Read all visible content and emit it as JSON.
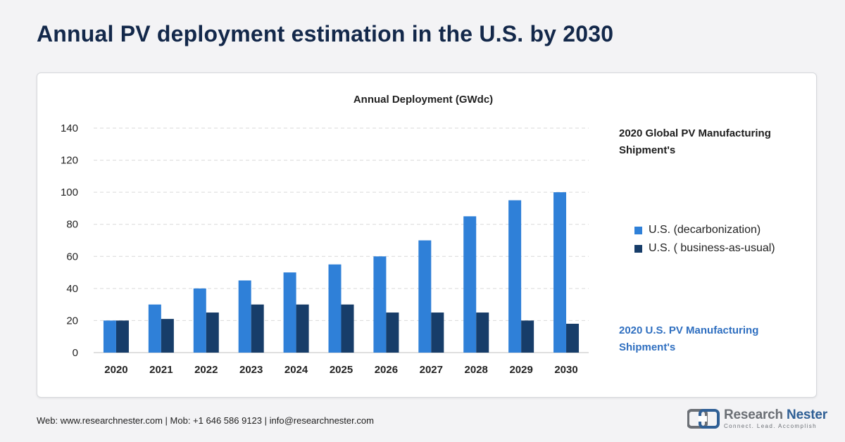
{
  "page": {
    "title": "Annual PV deployment estimation in the U.S. by 2030"
  },
  "side_labels": {
    "top": "2020 Global PV Manufacturing Shipment's",
    "bottom": "2020 U.S. PV Manufacturing Shipment's"
  },
  "footer": {
    "contact": "Web: www.researchnester.com | Mob: +1 646 586 9123 | info@researchnester.com",
    "brand_name_part1": "Research ",
    "brand_name_part2": "Nester",
    "brand_tagline": "Connect. Lead. Accomplish"
  },
  "colors": {
    "series1": "#2f80d8",
    "series2": "#173d69",
    "title": "#13284a",
    "accent_label": "#2f6fc0",
    "gridline": "#d9d9d9"
  },
  "chart_data": {
    "type": "bar",
    "title": "Annual Deployment (GWdc)",
    "xlabel": "",
    "ylabel": "",
    "categories": [
      "2020",
      "2021",
      "2022",
      "2023",
      "2024",
      "2025",
      "2026",
      "2027",
      "2028",
      "2029",
      "2030"
    ],
    "series": [
      {
        "name": "U.S. (decarbonization)",
        "values": [
          20,
          30,
          40,
          45,
          50,
          55,
          60,
          70,
          85,
          95,
          100
        ]
      },
      {
        "name": "U.S. ( business-as-usual)",
        "values": [
          20,
          21,
          25,
          30,
          30,
          30,
          25,
          25,
          25,
          20,
          18
        ]
      }
    ],
    "ylim": [
      0,
      140
    ],
    "yticks": [
      0,
      20,
      40,
      60,
      80,
      100,
      120,
      140
    ],
    "grid": true,
    "legend_position": "right"
  }
}
